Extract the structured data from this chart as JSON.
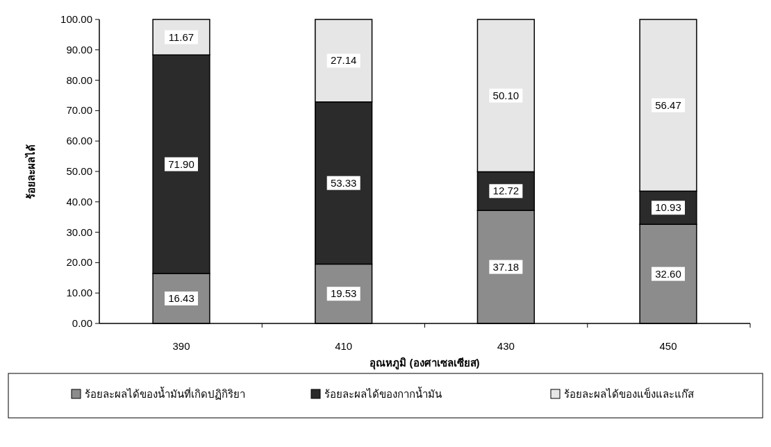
{
  "chart_data": {
    "type": "bar",
    "stacked": true,
    "xlabel": "อุณหภูมิ (องศาเซลเซียส)",
    "ylabel": "ร้อยละผลได้",
    "categories": [
      "390",
      "410",
      "430",
      "450"
    ],
    "ylim": [
      0,
      100
    ],
    "yticks": [
      {
        "value": 0,
        "label": "0.00"
      },
      {
        "value": 10,
        "label": "10.00"
      },
      {
        "value": 20,
        "label": "20.00"
      },
      {
        "value": 30,
        "label": "30.00"
      },
      {
        "value": 40,
        "label": "40.00"
      },
      {
        "value": 50,
        "label": "50.00"
      },
      {
        "value": 60,
        "label": "60.00"
      },
      {
        "value": 70,
        "label": "70.00"
      },
      {
        "value": 80,
        "label": "80.00"
      },
      {
        "value": 90,
        "label": "90.00"
      },
      {
        "value": 100,
        "label": "100.00"
      }
    ],
    "legend": "bottom",
    "grid": false,
    "series": [
      {
        "name": "ร้อยละผลได้ของน้ำมันที่เกิดปฏิกิริยา",
        "color": "#8c8c8c",
        "values": [
          16.43,
          19.53,
          37.18,
          32.6
        ],
        "value_labels": [
          "16.43",
          "19.53",
          "37.18",
          "32.60"
        ]
      },
      {
        "name": "ร้อยละผลได้ของกากน้ำมัน",
        "color": "#2b2b2b",
        "values": [
          71.9,
          53.33,
          12.72,
          10.93
        ],
        "value_labels": [
          "71.90",
          "53.33",
          "12.72",
          "10.93"
        ]
      },
      {
        "name": "ร้อยละผลได้ของแข็งและแก๊ส",
        "color": "#e6e6e6",
        "values": [
          11.67,
          27.14,
          50.1,
          56.47
        ],
        "value_labels": [
          "11.67",
          "27.14",
          "50.10",
          "56.47"
        ]
      }
    ]
  }
}
